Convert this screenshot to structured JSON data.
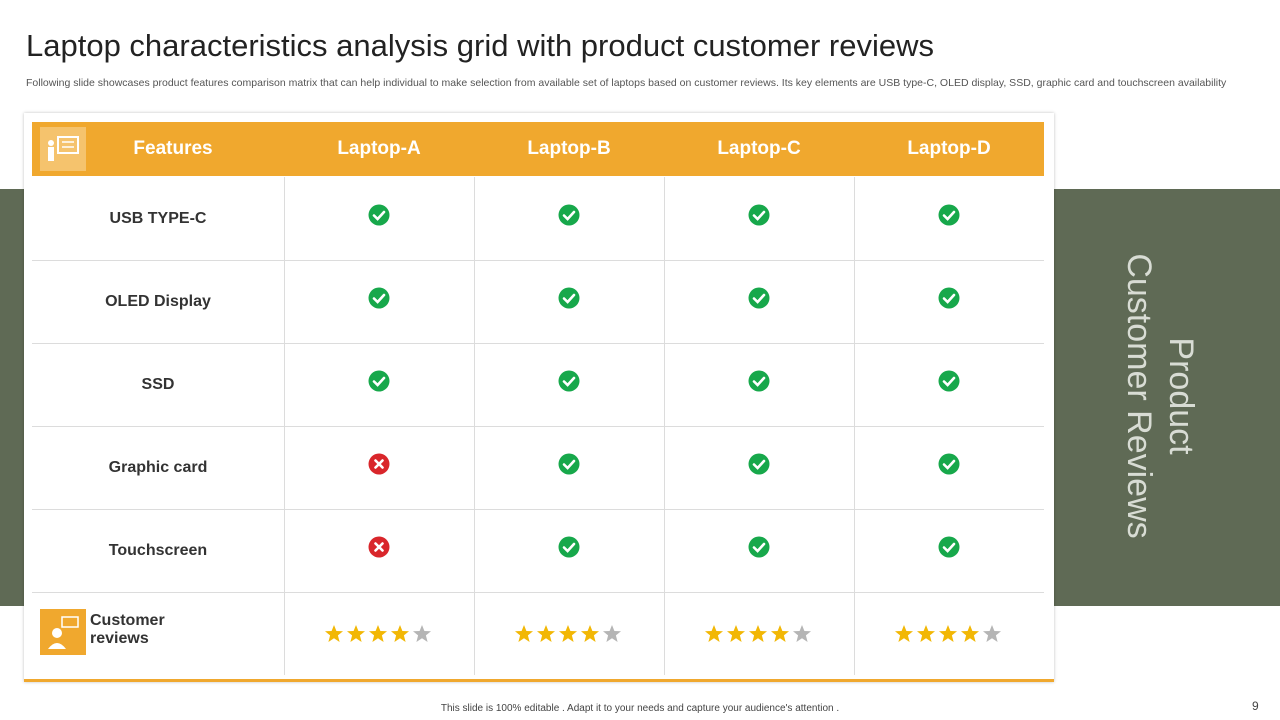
{
  "title": "Laptop characteristics analysis grid with product customer reviews",
  "subtitle": "Following slide showcases product features comparison matrix that can help individual to make selection from available set of laptops based on customer reviews. Its key elements are USB type-C, OLED display, SSD, graphic card and touchscreen availability",
  "side_panel": {
    "lines": [
      "Product",
      "Customer Reviews"
    ]
  },
  "table": {
    "header": [
      "Features",
      "Laptop-A",
      "Laptop-B",
      "Laptop-C",
      "Laptop-D"
    ],
    "rows": [
      {
        "feature": "USB TYPE-C",
        "values": [
          true,
          true,
          true,
          true
        ]
      },
      {
        "feature": "OLED Display",
        "values": [
          true,
          true,
          true,
          true
        ]
      },
      {
        "feature": "SSD",
        "values": [
          true,
          true,
          true,
          true
        ]
      },
      {
        "feature": "Graphic card",
        "values": [
          false,
          true,
          true,
          true
        ]
      },
      {
        "feature": "Touchscreen",
        "values": [
          false,
          true,
          true,
          true
        ]
      }
    ],
    "reviews": {
      "label": "Customer reviews",
      "ratings": [
        4,
        4,
        4,
        4
      ],
      "max": 5
    }
  },
  "footer": "This slide is 100% editable . Adapt it to your needs and capture your audience's attention .",
  "page_number": "9"
}
